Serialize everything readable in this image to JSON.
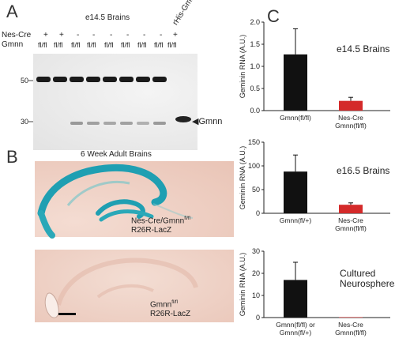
{
  "panelA": {
    "letter": "A",
    "title": "e14.5 Brains",
    "row1_label": "Nes-Cre",
    "row2_label": "Gmnn",
    "nescre": [
      "+",
      "+",
      "-",
      "-",
      "-",
      "-",
      "-",
      "-",
      "+"
    ],
    "gmnn": [
      "fl/fl",
      "fl/fl",
      "fl/fl",
      "fl/fl",
      "fl/fl",
      "fl/fl",
      "fl/fl",
      "fl/fl",
      "fl/fl"
    ],
    "control_lane_label": "rHis-Gmnn",
    "mw_marker_high": "50",
    "mw_marker_low": "30",
    "band_label": "Gmnn",
    "colors": {
      "blot_bg": "#ececec",
      "band": "#1a1a1a"
    }
  },
  "panelB": {
    "letter": "B",
    "title": "6 Week Adult Brains",
    "img1_label_line1": "Nes-Cre/Gmnn",
    "img1_label_sup": "fl/fl",
    "img1_label_line2": "R26R-LacZ",
    "img2_label_line1": "Gmnn",
    "img2_label_sup": "fl/fl",
    "img2_label_line2": "R26R-LacZ",
    "colors": {
      "tissue_bg": "#efcfc2",
      "lacz_blue": "#2aa8b8"
    }
  },
  "panelC": {
    "letter": "C",
    "charts": [
      {
        "annotation": "e14.5 Brains",
        "ylabel": "Geminin RNA (A.U.)",
        "ylim": [
          0,
          2
        ],
        "yticks": [
          "0.0",
          "0.5",
          "1.0",
          "1.5",
          "2.0"
        ],
        "tick_values": [
          0,
          0.5,
          1.0,
          1.5,
          2.0
        ],
        "categories": [
          "Gmnn(fl/fl)",
          "Nes-Cre\nGmnn(fl/fl)"
        ],
        "values": [
          1.27,
          0.22
        ],
        "errors": [
          0.58,
          0.08
        ],
        "colors": [
          "#111111",
          "#d42a2a"
        ]
      },
      {
        "annotation": "e16.5 Brains",
        "ylabel": "Geminin RNA (A.U.)",
        "ylim": [
          0,
          150
        ],
        "yticks": [
          "0",
          "50",
          "100",
          "150"
        ],
        "tick_values": [
          0,
          50,
          100,
          150
        ],
        "categories": [
          "Gmnn(fl/+)",
          "Nes-Cre\nGmnn(fl/fl)"
        ],
        "values": [
          88,
          18
        ],
        "errors": [
          35,
          4
        ],
        "colors": [
          "#111111",
          "#d42a2a"
        ]
      },
      {
        "annotation": "Cultured\nNeurospheres",
        "ylabel": "Geminin RNA (A.U.)",
        "ylim": [
          0,
          30
        ],
        "yticks": [
          "0",
          "10",
          "20",
          "30"
        ],
        "tick_values": [
          0,
          10,
          20,
          30
        ],
        "categories": [
          "Gmnn(fl/fl) or\nGmnn(fl/+)",
          "Nes-Cre\nGmnn(fl/fl)"
        ],
        "values": [
          17,
          0.2
        ],
        "errors": [
          8,
          0
        ],
        "colors": [
          "#111111",
          "#d42a2a"
        ]
      }
    ]
  },
  "chart_data": [
    {
      "type": "bar",
      "categories": [
        "Gmnn(fl/fl)",
        "Nes-Cre Gmnn(fl/fl)"
      ],
      "values": [
        1.27,
        0.22
      ],
      "errors": [
        0.58,
        0.08
      ],
      "ylabel": "Geminin RNA (A.U.)",
      "annotation": "e14.5 Brains",
      "ylim": [
        0,
        2
      ]
    },
    {
      "type": "bar",
      "categories": [
        "Gmnn(fl/+)",
        "Nes-Cre Gmnn(fl/fl)"
      ],
      "values": [
        88,
        18
      ],
      "errors": [
        35,
        4
      ],
      "ylabel": "Geminin RNA (A.U.)",
      "annotation": "e16.5 Brains",
      "ylim": [
        0,
        150
      ]
    },
    {
      "type": "bar",
      "categories": [
        "Gmnn(fl/fl) or Gmnn(fl/+)",
        "Nes-Cre Gmnn(fl/fl)"
      ],
      "values": [
        17,
        0.2
      ],
      "errors": [
        8,
        0
      ],
      "ylabel": "Geminin RNA (A.U.)",
      "annotation": "Cultured Neurospheres",
      "ylim": [
        0,
        30
      ]
    }
  ]
}
